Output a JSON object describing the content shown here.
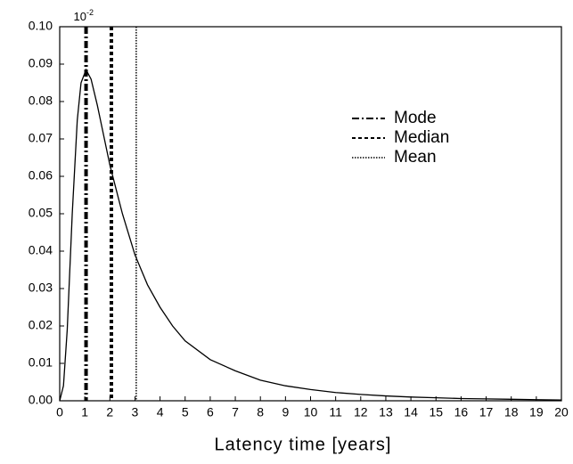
{
  "chart_data": {
    "type": "line",
    "xlabel": "Latency time [years]",
    "annotation": {
      "base": "10",
      "exponent": "-2"
    },
    "x": [
      0,
      0.15,
      0.3,
      0.5,
      0.7,
      0.85,
      1.05,
      1.25,
      1.5,
      1.75,
      2,
      2.5,
      3,
      3.5,
      4,
      4.5,
      5,
      6,
      7,
      8,
      9,
      10,
      11,
      12,
      13,
      14,
      15,
      16,
      17,
      18,
      19,
      20
    ],
    "series": [
      {
        "color": "#000000",
        "values": [
          0,
          0.004,
          0.019,
          0.05,
          0.075,
          0.085,
          0.0885,
          0.086,
          0.079,
          0.071,
          0.063,
          0.05,
          0.039,
          0.031,
          0.025,
          0.02,
          0.016,
          0.011,
          0.008,
          0.0055,
          0.004,
          0.003,
          0.0022,
          0.0017,
          0.0013,
          0.001,
          0.0008,
          0.0006,
          0.0005,
          0.0004,
          0.0003,
          0.0002
        ]
      }
    ],
    "vlines": [
      {
        "name": "Mode",
        "x": 1.05,
        "style": "dashdot"
      },
      {
        "name": "Median",
        "x": 2.06,
        "style": "dashed"
      },
      {
        "name": "Mean",
        "x": 3.05,
        "style": "dotted"
      }
    ],
    "xlim": [
      0,
      20
    ],
    "xticks": [
      0,
      1,
      2,
      3,
      4,
      5,
      6,
      7,
      8,
      9,
      10,
      11,
      12,
      13,
      14,
      15,
      16,
      17,
      18,
      19,
      20
    ],
    "ylim": [
      0,
      0.1
    ],
    "yticks": [
      {
        "value": 0,
        "label": "0.00"
      },
      {
        "value": 0.01,
        "label": "0.01"
      },
      {
        "value": 0.02,
        "label": "0.02"
      },
      {
        "value": 0.03,
        "label": "0.03"
      },
      {
        "value": 0.04,
        "label": "0.04"
      },
      {
        "value": 0.05,
        "label": "0.05"
      },
      {
        "value": 0.06,
        "label": "0.06"
      },
      {
        "value": 0.07,
        "label": "0.07"
      },
      {
        "value": 0.08,
        "label": "0.08"
      },
      {
        "value": 0.09,
        "label": "0.09"
      },
      {
        "value": 0.1,
        "label": "0.10"
      }
    ],
    "grid": false
  }
}
